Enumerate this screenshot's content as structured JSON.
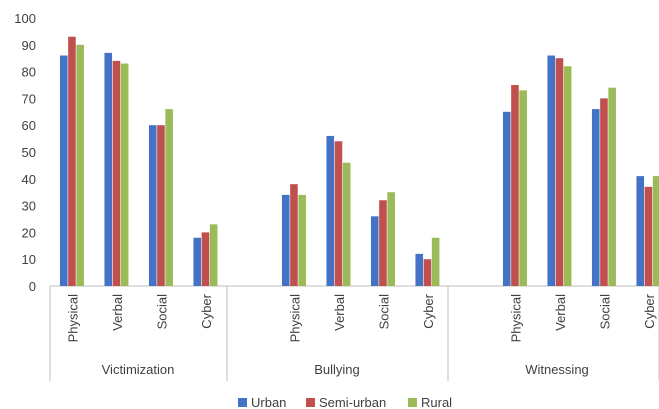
{
  "chart_data": {
    "type": "bar",
    "title": "",
    "xlabel": "",
    "ylabel": "",
    "ylim": [
      0,
      100
    ],
    "yticks": [
      "0",
      "10",
      "20",
      "30",
      "40",
      "50",
      "60",
      "70",
      "80",
      "90",
      "100"
    ],
    "gridlines": false,
    "legend_position": "bottom",
    "groups": [
      {
        "label": "Victimization",
        "categories": [
          "Physical",
          "Verbal",
          "Social",
          "Cyber"
        ]
      },
      {
        "label": "Bullying",
        "categories": [
          "Physical",
          "Verbal",
          "Social",
          "Cyber"
        ]
      },
      {
        "label": "Witnessing",
        "categories": [
          "Physical",
          "Verbal",
          "Social",
          "Cyber"
        ]
      }
    ],
    "series": [
      {
        "name": "Urban",
        "color": "#4472C4",
        "values": [
          86,
          87,
          60,
          18,
          34,
          56,
          26,
          12,
          65,
          86,
          66,
          41
        ]
      },
      {
        "name": "Semi-urban",
        "color": "#C0504D",
        "values": [
          93,
          84,
          60,
          20,
          38,
          54,
          32,
          10,
          75,
          85,
          70,
          37
        ]
      },
      {
        "name": "Rural",
        "color": "#9BBB59",
        "values": [
          90,
          83,
          66,
          23,
          34,
          46,
          35,
          18,
          73,
          82,
          74,
          41
        ]
      }
    ]
  }
}
